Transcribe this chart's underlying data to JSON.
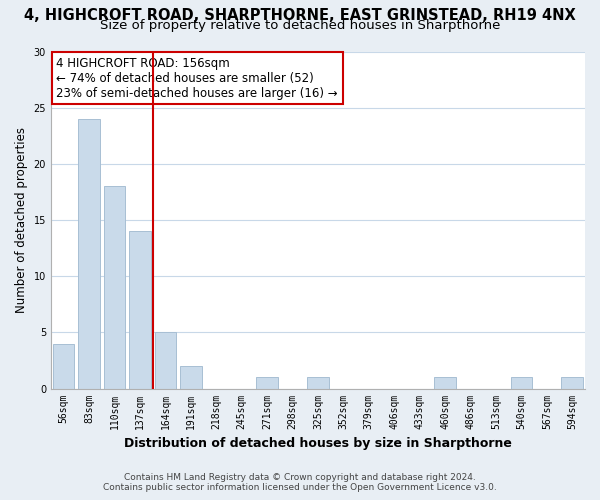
{
  "title": "4, HIGHCROFT ROAD, SHARPTHORNE, EAST GRINSTEAD, RH19 4NX",
  "subtitle": "Size of property relative to detached houses in Sharpthorne",
  "xlabel": "Distribution of detached houses by size in Sharpthorne",
  "ylabel": "Number of detached properties",
  "bar_labels": [
    "56sqm",
    "83sqm",
    "110sqm",
    "137sqm",
    "164sqm",
    "191sqm",
    "218sqm",
    "245sqm",
    "271sqm",
    "298sqm",
    "325sqm",
    "352sqm",
    "379sqm",
    "406sqm",
    "433sqm",
    "460sqm",
    "486sqm",
    "513sqm",
    "540sqm",
    "567sqm",
    "594sqm"
  ],
  "bar_values": [
    4,
    24,
    18,
    14,
    5,
    2,
    0,
    0,
    1,
    0,
    1,
    0,
    0,
    0,
    0,
    1,
    0,
    0,
    1,
    0,
    1
  ],
  "bar_color": "#c9daea",
  "bar_edge_color": "#a8bfd4",
  "vline_color": "#cc0000",
  "vline_x_index": 3.5,
  "annotation_title": "4 HIGHCROFT ROAD: 156sqm",
  "annotation_line1": "← 74% of detached houses are smaller (52)",
  "annotation_line2": "23% of semi-detached houses are larger (16) →",
  "annotation_box_color": "#ffffff",
  "annotation_box_edge": "#cc0000",
  "ylim": [
    0,
    30
  ],
  "yticks": [
    0,
    5,
    10,
    15,
    20,
    25,
    30
  ],
  "footnote1": "Contains HM Land Registry data © Crown copyright and database right 2024.",
  "footnote2": "Contains public sector information licensed under the Open Government Licence v3.0.",
  "bg_color": "#e8eef4",
  "plot_bg_color": "#ffffff",
  "grid_color": "#c8d8e8",
  "title_fontsize": 10.5,
  "subtitle_fontsize": 9.5,
  "xlabel_fontsize": 9,
  "ylabel_fontsize": 8.5,
  "tick_fontsize": 7,
  "annotation_fontsize": 8.5,
  "footnote_fontsize": 6.5
}
